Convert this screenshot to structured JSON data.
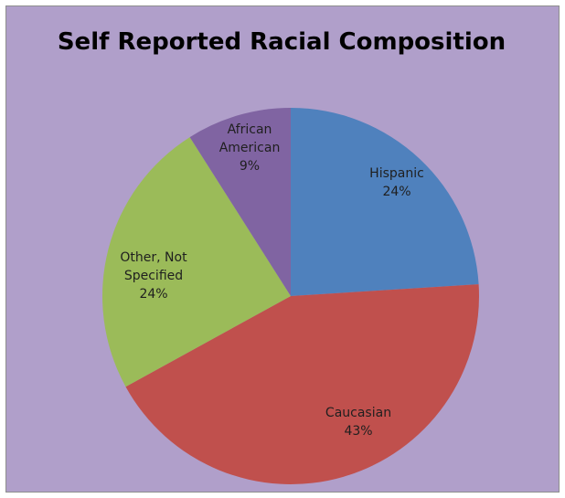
{
  "chart_data": {
    "type": "pie",
    "title": "Self Reported Racial Composition",
    "background_color": "#b09fca",
    "label_color": "#1f1f1f",
    "slices": [
      {
        "label_lines": [
          "Hispanic"
        ],
        "value_label": "24%",
        "value": 24,
        "color": "#4f81bd"
      },
      {
        "label_lines": [
          "Caucasian"
        ],
        "value_label": "43%",
        "value": 43,
        "color": "#c0504d"
      },
      {
        "label_lines": [
          "Other, Not",
          "Specified"
        ],
        "value_label": "24%",
        "value": 24,
        "color": "#9bbb59"
      },
      {
        "label_lines": [
          "African",
          "American"
        ],
        "value_label": "9%",
        "value": 9,
        "color": "#8064a2"
      }
    ]
  }
}
